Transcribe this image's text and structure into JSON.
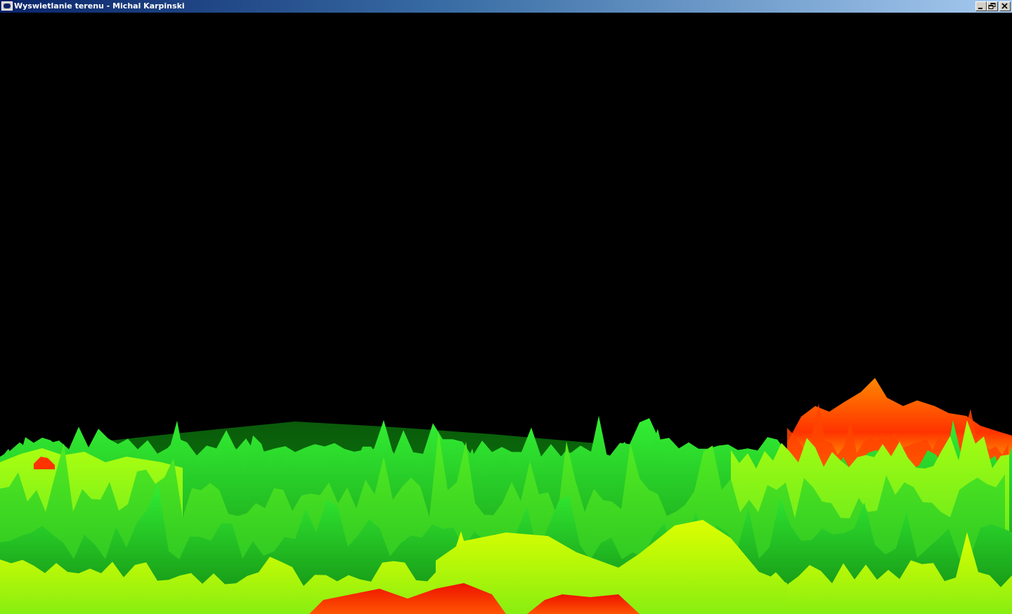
{
  "window": {
    "title": "Wyswietlanie terenu - Michal Karpinski",
    "icon": "app-window-icon",
    "controls": [
      {
        "name": "minimize-icon"
      },
      {
        "name": "restore-icon"
      },
      {
        "name": "close-icon"
      }
    ]
  },
  "scene": {
    "background": "#000000",
    "colors": {
      "dark_green": "#0a6a0a",
      "green": "#22cc22",
      "lime": "#aaff00",
      "yellow": "#ddff00",
      "orange": "#ff7700",
      "red": "#ee1100"
    }
  }
}
